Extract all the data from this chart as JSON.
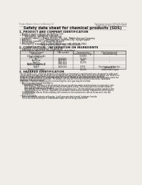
{
  "bg_color": "#f0ede8",
  "header_left": "Product Name: Lithium Ion Battery Cell",
  "header_right_line1": "Publication Control: SDS-049-006-10",
  "header_right_line2": "Established / Revision: Dec.7.2010",
  "title": "Safety data sheet for chemical products (SDS)",
  "section1_title": "1. PRODUCT AND COMPANY IDENTIFICATION",
  "section1_lines": [
    " • Product name: Lithium Ion Battery Cell",
    " • Product code: Cylindrical-type cell",
    "        (UR18650J, UR18650L, UR18650A)",
    " • Company name:     Sanyo Electric Co., Ltd., Mobile Energy Company",
    " • Address:           2001, Kamitosanari, Sumoto-City, Hyogo, Japan",
    " • Telephone number:  +81-(799)-26-4111",
    " • Fax number:        +81-(799)-26-4123",
    " • Emergency telephone number (Weekday) +81-799-26-3962",
    "                              (Night and holiday) +81-799-26-4101"
  ],
  "section2_title": "2. COMPOSITION / INFORMATION ON INGREDIENTS",
  "section2_sub": " • Substance or preparation: Preparation",
  "section2_sub2": " • Information about the chemical nature of product:",
  "table_headers": [
    "Chemical name/\nComponent",
    "CAS number",
    "Concentration /\nConcentration range",
    "Classification and\nhazard labeling"
  ],
  "table_rows": [
    [
      "Lithium cobalt oxide\n(LiMn-Co)(Ni)O₂)",
      "-",
      "(30-60%)",
      "-"
    ],
    [
      "Iron",
      "7439-89-6",
      "15-25%",
      "-"
    ],
    [
      "Aluminum",
      "7429-90-5",
      "2-6%",
      "-"
    ],
    [
      "Graphite\n(Artificial graphite-1)\n(Artificial graphite-2)",
      "7782-42-5\n7782-44-0",
      "10-25%",
      "-"
    ],
    [
      "Copper",
      "7440-50-8",
      "5-15%",
      "Sensitization of the skin\ngroup R43.2"
    ],
    [
      "Organic electrolyte",
      "-",
      "10-25%",
      "Inflammable liquid"
    ]
  ],
  "section3_title": "3. HAZARDS IDENTIFICATION",
  "section3_text": [
    "  For the battery cell, chemical materials are stored in a hermetically sealed metal case, designed to withstand",
    "  temperature changes and pressures encountered during normal use. As a result, during normal use, there is no",
    "  physical danger of ignition or explosion and there is no danger of hazardous materials leakage.",
    "  However, if exposed to a fire and/or mechanical shocks, decomposed, vented electric which in many cases can",
    "  be gas release cannot be operated. The battery cell case will be breached of fire-batteries, hazardous",
    "  materials may be released.",
    "  Moreover, if heated strongly by the surrounding fire, toxic gas may be emitted.",
    "",
    "  • Most important hazard and effects:",
    "      Human health effects:",
    "          Inhalation: The release of the electrolyte has an anesthesia action and stimulates in respiratory tract.",
    "          Skin contact: The release of the electrolyte stimulates a skin. The electrolyte skin contact causes a",
    "          sore and stimulation on the skin.",
    "          Eye contact: The release of the electrolyte stimulates eyes. The electrolyte eye contact causes a sore",
    "          and stimulation on the eye. Especially, a substance that causes a strong inflammation of the eyes is",
    "          contained.",
    "      Environmental effects: Since a battery cell remains in the environment, do not throw out it into the",
    "      environment.",
    "",
    "  • Specific hazards:",
    "      If the electrolyte contacts with water, it will generate detrimental hydrogen fluoride.",
    "      Since the said electrolyte is inflammable liquid, do not bring close to fire."
  ]
}
